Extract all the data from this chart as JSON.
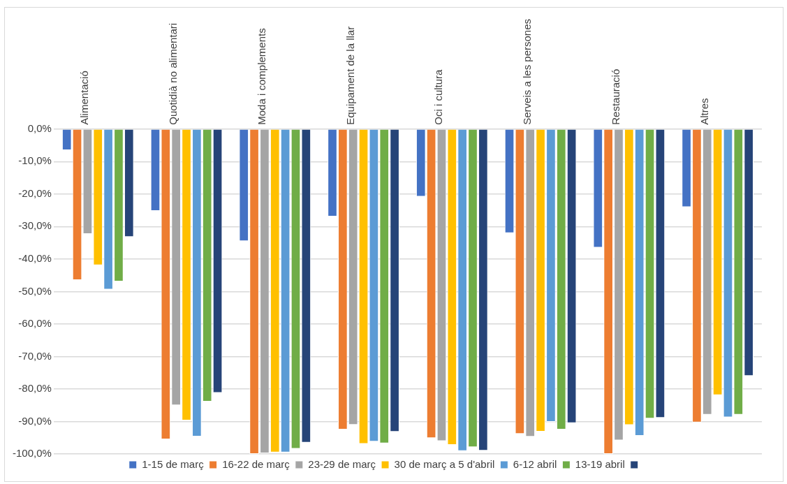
{
  "chart_data": {
    "type": "bar",
    "categories": [
      "Alimentació",
      "Quotidià no alimentari",
      "Moda i complements",
      "Equipament de la llar",
      "Oci i cultura",
      "Serveis a les persones",
      "Restauració",
      "Altres"
    ],
    "series": [
      {
        "name": "1-15 de març",
        "color": "#4472c4",
        "values": [
          -6.5,
          -25.2,
          -34.5,
          -26.9,
          -20.8,
          -32.0,
          -36.5,
          -24.0
        ]
      },
      {
        "name": "16-22 de març",
        "color": "#ed7d31",
        "values": [
          -46.5,
          -95.5,
          -100,
          -92.5,
          -95.1,
          -93.8,
          -100,
          -90.3
        ]
      },
      {
        "name": "23-29 de març",
        "color": "#a5a5a5",
        "values": [
          -32.3,
          -85.0,
          -99.8,
          -91.0,
          -96.0,
          -94.7,
          -95.8,
          -87.9
        ]
      },
      {
        "name": "30 de març a 5 d'abril",
        "color": "#ffc000",
        "values": [
          -41.9,
          -89.7,
          -99.5,
          -96.9,
          -97.2,
          -93.1,
          -91.1,
          -81.9
        ]
      },
      {
        "name": "6-12 abril",
        "color": "#5b9bd5",
        "values": [
          -49.4,
          -94.6,
          -99.5,
          -96.2,
          -99.1,
          -90.1,
          -94.4,
          -88.7
        ]
      },
      {
        "name": "13-19 abril",
        "color": "#70ad47",
        "values": [
          -46.9,
          -83.9,
          -98.4,
          -96.7,
          -97.9,
          -92.5,
          -89.1,
          -87.9
        ]
      },
      {
        "color": "#264478",
        "values": [
          -33.2,
          -81.2,
          -96.5,
          -93.2,
          -99.0,
          -90.5,
          -88.9,
          -76.0
        ]
      }
    ],
    "ylim": [
      -100,
      0
    ],
    "yticks": [
      {
        "value": 0,
        "label": "0,0%"
      },
      {
        "value": -10,
        "label": "-10,0%"
      },
      {
        "value": -20,
        "label": "-20,0%"
      },
      {
        "value": -30,
        "label": "-30,0%"
      },
      {
        "value": -40,
        "label": "-40,0%"
      },
      {
        "value": -50,
        "label": "-50,0%"
      },
      {
        "value": -60,
        "label": "-60,0%"
      },
      {
        "value": -70,
        "label": "-70,0%"
      },
      {
        "value": -80,
        "label": "-80,0%"
      },
      {
        "value": -90,
        "label": "-90,0%"
      },
      {
        "value": -100,
        "label": "-100,0%"
      }
    ],
    "grid": "y",
    "legend": "bottom"
  }
}
